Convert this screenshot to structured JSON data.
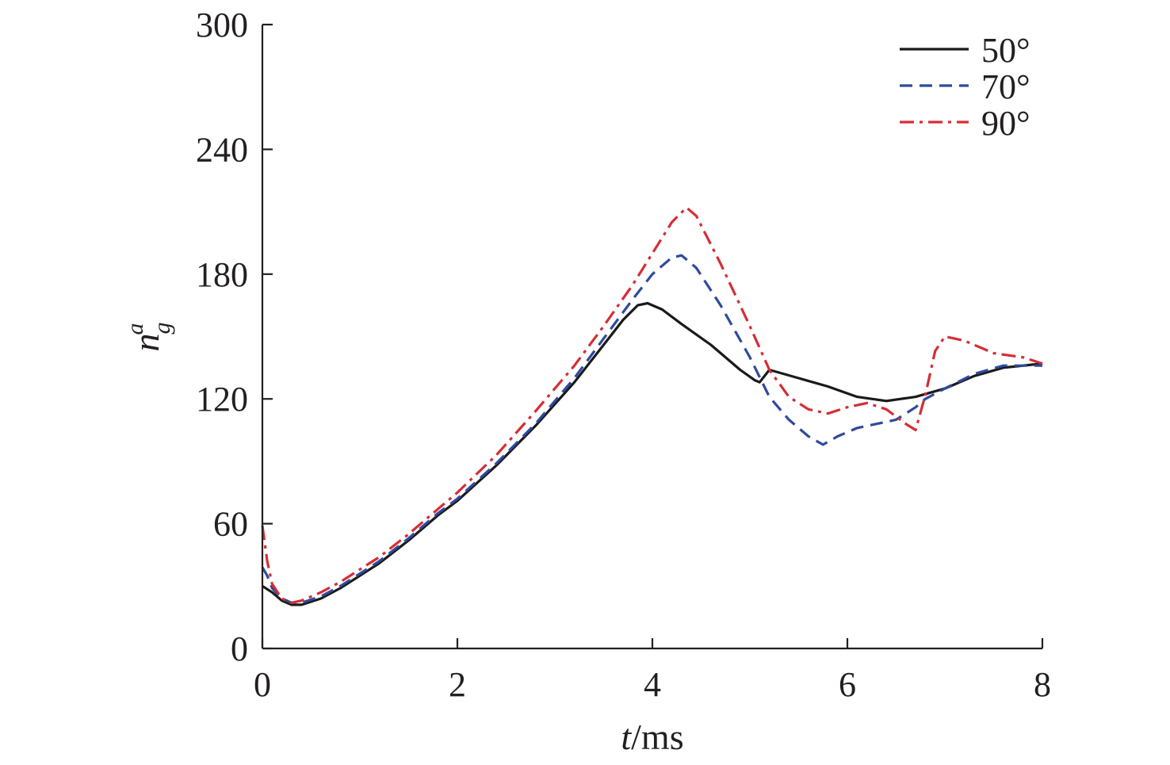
{
  "chart_data": {
    "type": "line",
    "title": "",
    "xlabel": {
      "italic": "t",
      "rest": "/ms"
    },
    "ylabel": {
      "base": "n",
      "sub": "g",
      "sup": "a"
    },
    "xlim": [
      0,
      8
    ],
    "ylim": [
      0,
      300
    ],
    "xticks": [
      0,
      2,
      4,
      6,
      8
    ],
    "yticks": [
      0,
      60,
      120,
      180,
      240,
      300
    ],
    "grid": false,
    "legend_position": "top-right",
    "series": [
      {
        "name": "50°",
        "color": "#1a1a1a",
        "dash": "solid",
        "points": [
          [
            0.0,
            30
          ],
          [
            0.1,
            27
          ],
          [
            0.2,
            23
          ],
          [
            0.3,
            21
          ],
          [
            0.4,
            21
          ],
          [
            0.6,
            24
          ],
          [
            0.8,
            29
          ],
          [
            1.0,
            35
          ],
          [
            1.2,
            41
          ],
          [
            1.5,
            52
          ],
          [
            1.8,
            64
          ],
          [
            2.0,
            71
          ],
          [
            2.4,
            88
          ],
          [
            2.8,
            107
          ],
          [
            3.2,
            128
          ],
          [
            3.5,
            146
          ],
          [
            3.7,
            158
          ],
          [
            3.85,
            165
          ],
          [
            3.95,
            166
          ],
          [
            4.1,
            163
          ],
          [
            4.3,
            156
          ],
          [
            4.6,
            146
          ],
          [
            4.9,
            134
          ],
          [
            5.05,
            129
          ],
          [
            5.1,
            128
          ],
          [
            5.2,
            134
          ],
          [
            5.5,
            130
          ],
          [
            5.8,
            126
          ],
          [
            6.1,
            121
          ],
          [
            6.4,
            119
          ],
          [
            6.7,
            121
          ],
          [
            7.0,
            125
          ],
          [
            7.3,
            131
          ],
          [
            7.6,
            135
          ],
          [
            8.0,
            137
          ]
        ]
      },
      {
        "name": "70°",
        "color": "#2e4a9e",
        "dash": "dashed",
        "points": [
          [
            0.0,
            39
          ],
          [
            0.05,
            35
          ],
          [
            0.1,
            29
          ],
          [
            0.2,
            24
          ],
          [
            0.3,
            22
          ],
          [
            0.4,
            22
          ],
          [
            0.6,
            25
          ],
          [
            0.8,
            30
          ],
          [
            1.0,
            36
          ],
          [
            1.2,
            42
          ],
          [
            1.5,
            53
          ],
          [
            1.8,
            65
          ],
          [
            2.0,
            72
          ],
          [
            2.4,
            89
          ],
          [
            2.8,
            108
          ],
          [
            3.2,
            130
          ],
          [
            3.5,
            149
          ],
          [
            3.8,
            168
          ],
          [
            4.0,
            180
          ],
          [
            4.2,
            188
          ],
          [
            4.3,
            189
          ],
          [
            4.45,
            183
          ],
          [
            4.7,
            165
          ],
          [
            5.0,
            140
          ],
          [
            5.2,
            121
          ],
          [
            5.4,
            110
          ],
          [
            5.6,
            102
          ],
          [
            5.75,
            98
          ],
          [
            5.9,
            102
          ],
          [
            6.1,
            106
          ],
          [
            6.3,
            108
          ],
          [
            6.5,
            110
          ],
          [
            6.7,
            116
          ],
          [
            6.8,
            120
          ],
          [
            7.0,
            125
          ],
          [
            7.3,
            132
          ],
          [
            7.6,
            136
          ],
          [
            8.0,
            136
          ]
        ]
      },
      {
        "name": "90°",
        "color": "#d62d35",
        "dash": "dashdot",
        "points": [
          [
            0.0,
            59
          ],
          [
            0.05,
            42
          ],
          [
            0.1,
            31
          ],
          [
            0.2,
            24
          ],
          [
            0.3,
            22
          ],
          [
            0.4,
            23
          ],
          [
            0.6,
            27
          ],
          [
            0.8,
            32
          ],
          [
            1.0,
            38
          ],
          [
            1.2,
            44
          ],
          [
            1.5,
            55
          ],
          [
            1.8,
            67
          ],
          [
            2.0,
            75
          ],
          [
            2.4,
            93
          ],
          [
            2.8,
            114
          ],
          [
            3.2,
            136
          ],
          [
            3.5,
            155
          ],
          [
            3.8,
            175
          ],
          [
            4.0,
            190
          ],
          [
            4.2,
            205
          ],
          [
            4.35,
            212
          ],
          [
            4.45,
            208
          ],
          [
            4.7,
            185
          ],
          [
            5.0,
            155
          ],
          [
            5.2,
            134
          ],
          [
            5.4,
            121
          ],
          [
            5.6,
            115
          ],
          [
            5.8,
            113
          ],
          [
            6.0,
            116
          ],
          [
            6.2,
            118
          ],
          [
            6.4,
            115
          ],
          [
            6.6,
            108
          ],
          [
            6.7,
            105
          ],
          [
            6.8,
            122
          ],
          [
            6.9,
            143
          ],
          [
            7.0,
            150
          ],
          [
            7.2,
            148
          ],
          [
            7.5,
            142
          ],
          [
            7.8,
            140
          ],
          [
            8.0,
            137
          ]
        ]
      }
    ]
  }
}
